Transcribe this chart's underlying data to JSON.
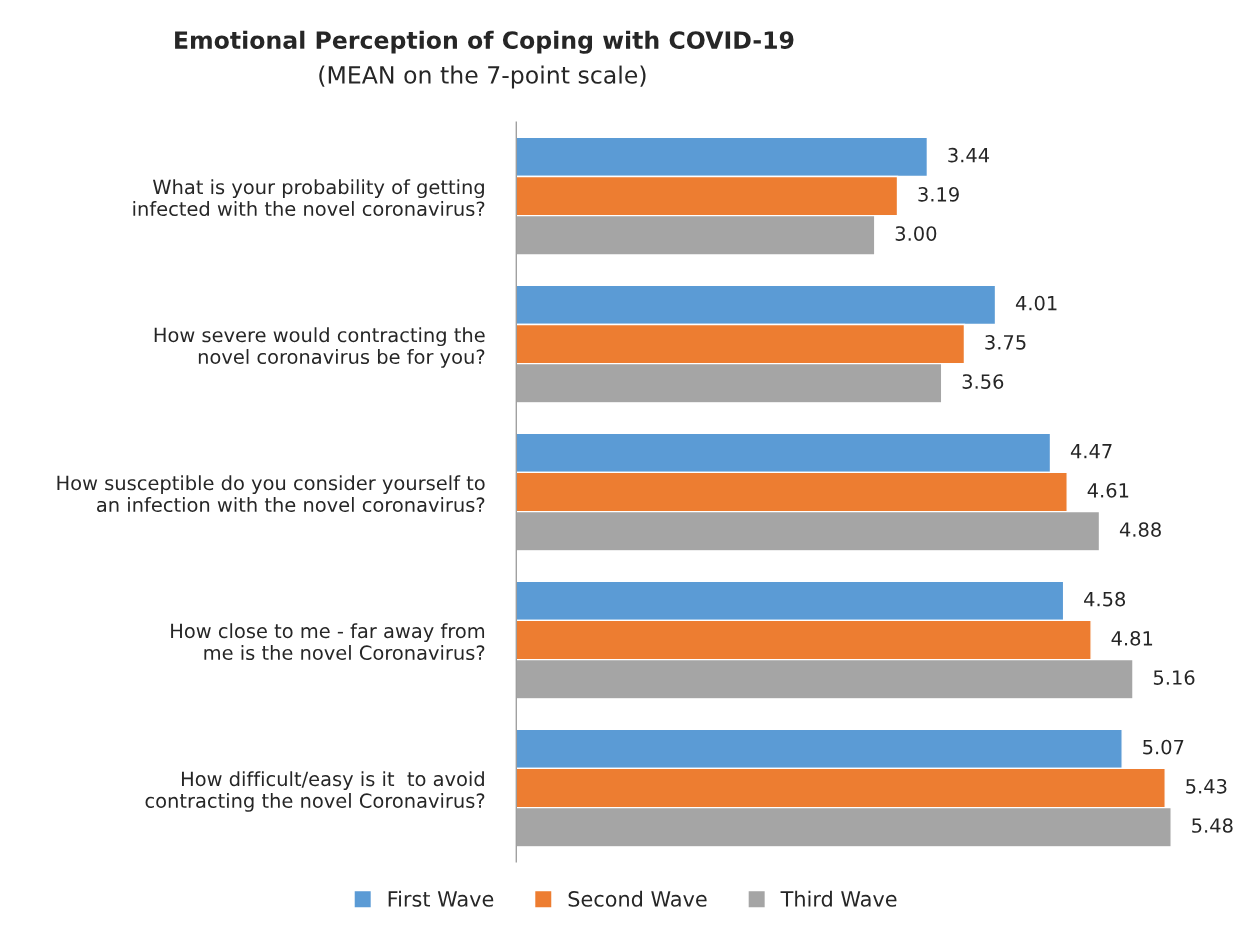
{
  "chart_data": {
    "type": "bar",
    "orientation": "horizontal",
    "title": "Emotional Perception of Coping with COVID-19",
    "subtitle": "(MEAN on the 7-point scale)",
    "categories": [
      "What is your probability of getting infected with the novel coronavirus?",
      "How severe would contracting the novel coronavirus be for you?",
      "How susceptible do you consider yourself to an infection with the novel coronavirus?",
      "How close to me - far away from me is the novel Coronavirus?",
      "How difficult/easy is it  to avoid contracting the novel Coronavirus?"
    ],
    "series": [
      {
        "name": "First Wave",
        "color": "#5b9bd5",
        "values": [
          3.44,
          4.01,
          4.47,
          4.58,
          5.07
        ],
        "value_labels": [
          "3.44",
          "4.01",
          "4.47",
          "4.58",
          "5.07"
        ]
      },
      {
        "name": "Second Wave",
        "color": "#ed7d31",
        "values": [
          3.19,
          3.75,
          4.61,
          4.81,
          5.43
        ],
        "value_labels": [
          "3.19",
          "3.75",
          "4.61",
          "4.81",
          "5.43"
        ]
      },
      {
        "name": "Third Wave",
        "color": "#a5a5a5",
        "values": [
          3.0,
          3.56,
          4.88,
          5.16,
          5.48
        ],
        "value_labels": [
          "3.00",
          "3.56",
          "4.88",
          "5.16",
          "5.48"
        ]
      }
    ],
    "tick_labels": "y",
    "grid": false,
    "legend": "bottom"
  }
}
